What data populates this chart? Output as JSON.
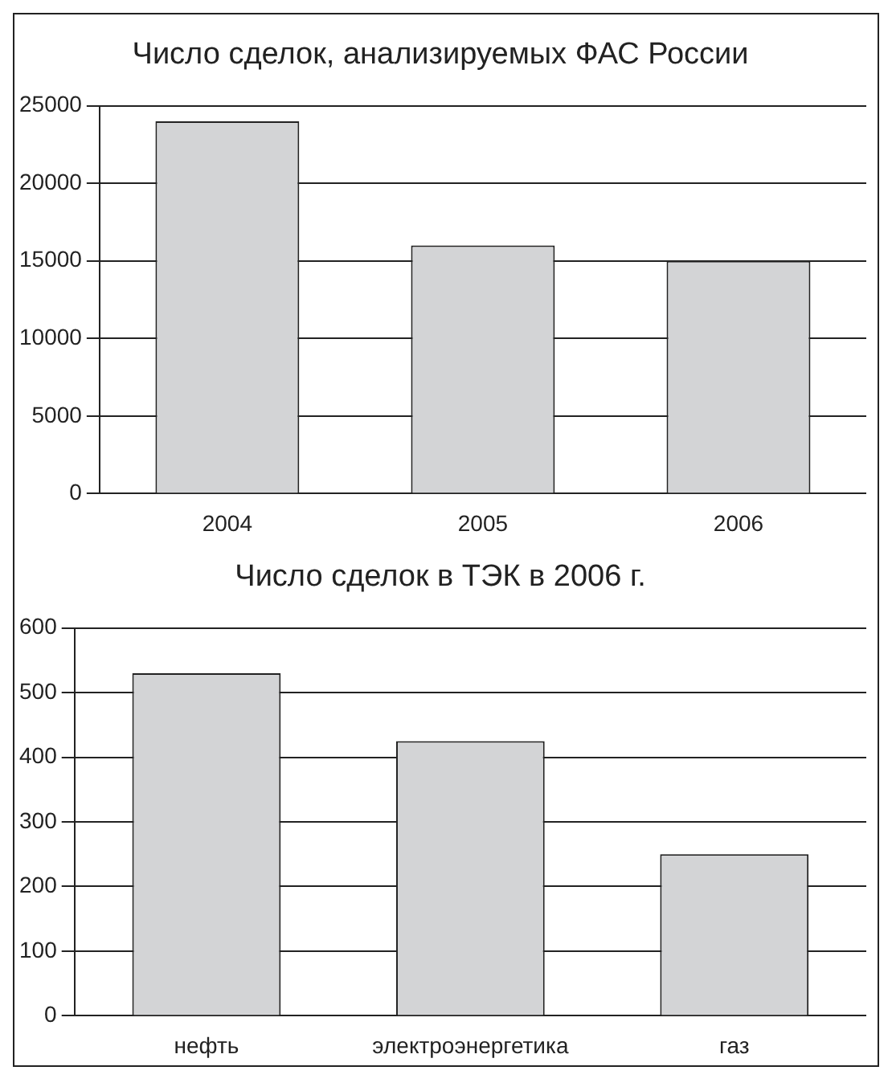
{
  "chart_data": [
    {
      "type": "bar",
      "title": "Число сделок, анализируемых ФАС России",
      "categories": [
        "2004",
        "2005",
        "2006"
      ],
      "values": [
        24000,
        16000,
        15000
      ],
      "color": "#d3d4d6",
      "ylim": [
        0,
        25000
      ],
      "yticks": [
        0,
        5000,
        10000,
        15000,
        20000,
        25000
      ],
      "grid": "y"
    },
    {
      "type": "bar",
      "title": "Число сделок в ТЭК в 2006 г.",
      "categories": [
        "нефть",
        "электроэнергетика",
        "газ"
      ],
      "values": [
        530,
        425,
        250
      ],
      "color": "#d3d4d6",
      "ylim": [
        0,
        600
      ],
      "yticks": [
        0,
        100,
        200,
        300,
        400,
        500,
        600
      ],
      "grid": "y"
    }
  ]
}
